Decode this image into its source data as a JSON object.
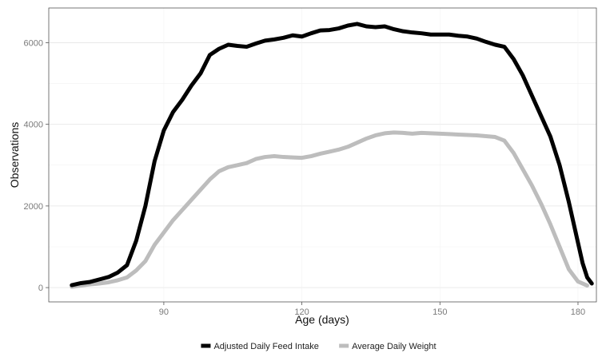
{
  "chart_data": {
    "type": "line",
    "xlabel": "Age (days)",
    "ylabel": "Observations",
    "xlim": [
      65,
      184
    ],
    "ylim": [
      -350,
      6850
    ],
    "xticks": [
      90,
      120,
      150,
      180
    ],
    "yticks": [
      0,
      2000,
      4000,
      6000
    ],
    "grid": true,
    "legend_position": "bottom",
    "series": [
      {
        "name": "Adjusted Daily Feed Intake",
        "color": "#000000",
        "points": [
          [
            70,
            60
          ],
          [
            72,
            110
          ],
          [
            74,
            140
          ],
          [
            76,
            200
          ],
          [
            78,
            260
          ],
          [
            80,
            370
          ],
          [
            82,
            550
          ],
          [
            84,
            1150
          ],
          [
            86,
            2000
          ],
          [
            88,
            3100
          ],
          [
            90,
            3850
          ],
          [
            92,
            4300
          ],
          [
            94,
            4600
          ],
          [
            96,
            4950
          ],
          [
            98,
            5250
          ],
          [
            100,
            5700
          ],
          [
            102,
            5850
          ],
          [
            104,
            5950
          ],
          [
            106,
            5920
          ],
          [
            108,
            5900
          ],
          [
            110,
            5980
          ],
          [
            112,
            6050
          ],
          [
            114,
            6080
          ],
          [
            116,
            6120
          ],
          [
            118,
            6180
          ],
          [
            120,
            6150
          ],
          [
            122,
            6230
          ],
          [
            124,
            6300
          ],
          [
            126,
            6310
          ],
          [
            128,
            6350
          ],
          [
            130,
            6420
          ],
          [
            132,
            6460
          ],
          [
            134,
            6400
          ],
          [
            136,
            6380
          ],
          [
            138,
            6400
          ],
          [
            140,
            6330
          ],
          [
            142,
            6280
          ],
          [
            144,
            6250
          ],
          [
            146,
            6230
          ],
          [
            148,
            6200
          ],
          [
            150,
            6200
          ],
          [
            152,
            6200
          ],
          [
            154,
            6170
          ],
          [
            156,
            6150
          ],
          [
            158,
            6100
          ],
          [
            160,
            6020
          ],
          [
            162,
            5950
          ],
          [
            164,
            5900
          ],
          [
            166,
            5600
          ],
          [
            168,
            5200
          ],
          [
            170,
            4700
          ],
          [
            172,
            4200
          ],
          [
            174,
            3700
          ],
          [
            176,
            3000
          ],
          [
            178,
            2100
          ],
          [
            180,
            1100
          ],
          [
            181,
            600
          ],
          [
            182,
            250
          ],
          [
            183,
            100
          ]
        ]
      },
      {
        "name": "Average Daily Weight",
        "color": "#bdbdbd",
        "points": [
          [
            70,
            20
          ],
          [
            72,
            50
          ],
          [
            74,
            80
          ],
          [
            76,
            100
          ],
          [
            78,
            130
          ],
          [
            80,
            180
          ],
          [
            82,
            250
          ],
          [
            84,
            420
          ],
          [
            86,
            650
          ],
          [
            88,
            1050
          ],
          [
            90,
            1350
          ],
          [
            92,
            1650
          ],
          [
            94,
            1900
          ],
          [
            96,
            2150
          ],
          [
            98,
            2400
          ],
          [
            100,
            2650
          ],
          [
            102,
            2850
          ],
          [
            104,
            2950
          ],
          [
            106,
            3000
          ],
          [
            108,
            3050
          ],
          [
            110,
            3150
          ],
          [
            112,
            3200
          ],
          [
            114,
            3220
          ],
          [
            116,
            3200
          ],
          [
            118,
            3190
          ],
          [
            120,
            3180
          ],
          [
            122,
            3220
          ],
          [
            124,
            3280
          ],
          [
            126,
            3330
          ],
          [
            128,
            3380
          ],
          [
            130,
            3450
          ],
          [
            132,
            3550
          ],
          [
            134,
            3650
          ],
          [
            136,
            3730
          ],
          [
            138,
            3780
          ],
          [
            140,
            3800
          ],
          [
            142,
            3790
          ],
          [
            144,
            3770
          ],
          [
            146,
            3790
          ],
          [
            148,
            3780
          ],
          [
            150,
            3770
          ],
          [
            152,
            3760
          ],
          [
            154,
            3750
          ],
          [
            156,
            3740
          ],
          [
            158,
            3730
          ],
          [
            160,
            3710
          ],
          [
            162,
            3690
          ],
          [
            164,
            3600
          ],
          [
            166,
            3300
          ],
          [
            168,
            2900
          ],
          [
            170,
            2500
          ],
          [
            172,
            2050
          ],
          [
            174,
            1550
          ],
          [
            176,
            1000
          ],
          [
            178,
            450
          ],
          [
            180,
            150
          ],
          [
            182,
            50
          ]
        ]
      }
    ]
  }
}
